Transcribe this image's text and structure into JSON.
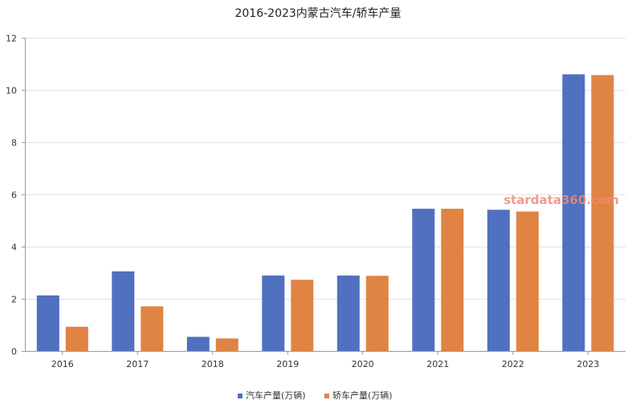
{
  "chart_data": {
    "type": "bar",
    "title": "2016-2023内蒙古汽车/轿车产量",
    "xlabel": "",
    "ylabel": "",
    "categories": [
      "2016",
      "2017",
      "2018",
      "2019",
      "2020",
      "2021",
      "2022",
      "2023"
    ],
    "series": [
      {
        "name": "汽车产量(万辆)",
        "color": "#5070c0",
        "values": [
          2.13,
          3.05,
          0.54,
          2.89,
          2.89,
          5.45,
          5.41,
          10.6
        ]
      },
      {
        "name": "轿车产量(万辆)",
        "color": "#e08444",
        "values": [
          0.93,
          1.71,
          0.48,
          2.73,
          2.88,
          5.45,
          5.34,
          10.57
        ]
      }
    ],
    "ylim": [
      0,
      12
    ],
    "yticks": [
      0,
      2,
      4,
      6,
      8,
      10,
      12
    ],
    "grid": true,
    "legend_position": "bottom-center"
  },
  "watermark": "stardata360.com"
}
